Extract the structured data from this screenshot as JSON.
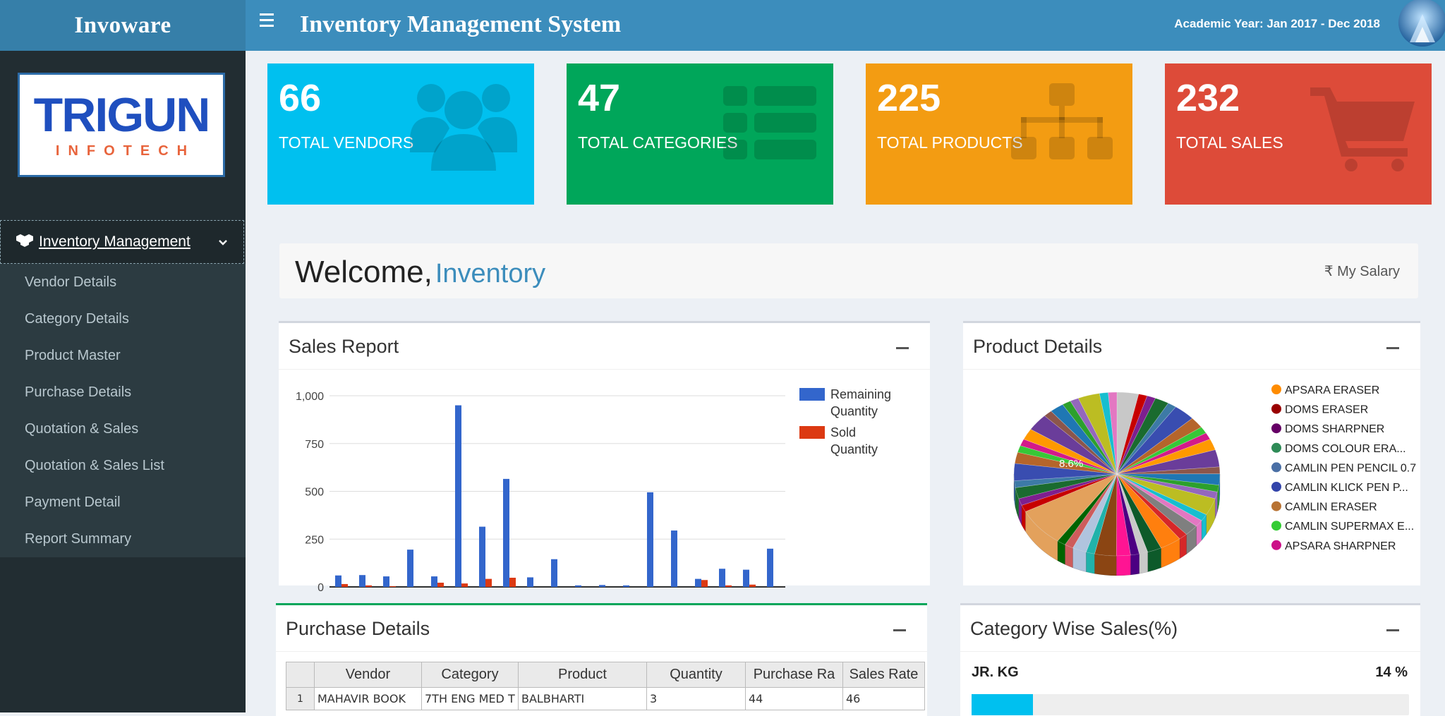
{
  "header": {
    "app_name": "Invoware",
    "system_title": "Inventory Management System",
    "academic_year": "Academic Year: Jan 2017 - Dec 2018"
  },
  "sidebar": {
    "brand_main": "TRIGUN",
    "brand_sub": "INFOTECH",
    "menu_head": "Inventory Management",
    "items": [
      {
        "label": "Vendor Details"
      },
      {
        "label": "Category Details"
      },
      {
        "label": "Product Master"
      },
      {
        "label": "Purchase Details"
      },
      {
        "label": "Quotation & Sales"
      },
      {
        "label": "Quotation & Sales List"
      },
      {
        "label": "Payment Detail"
      },
      {
        "label": "Report Summary"
      }
    ]
  },
  "stats": [
    {
      "value": "66",
      "label": "TOTAL VENDORS",
      "color": "#00c0ef",
      "icon": "users-icon"
    },
    {
      "value": "47",
      "label": "TOTAL CATEGORIES",
      "color": "#00a65a",
      "icon": "list-icon"
    },
    {
      "value": "225",
      "label": "TOTAL PRODUCTS",
      "color": "#f39c12",
      "icon": "sitemap-icon"
    },
    {
      "value": "232",
      "label": "TOTAL SALES",
      "color": "#dd4b39",
      "icon": "cart-icon"
    }
  ],
  "welcome": {
    "greeting": "Welcome,",
    "name": "Inventory",
    "salary_link": "₹ My Salary"
  },
  "sales_report": {
    "title": "Sales Report",
    "chart_data": {
      "type": "bar",
      "ylim": [
        0,
        1000
      ],
      "y_ticks": [
        "0",
        "250",
        "500",
        "750",
        "1,000"
      ],
      "legend_position": "right",
      "series": [
        {
          "name": "Remaining Quantity",
          "color": "#3366cc",
          "values": [
            60,
            62,
            55,
            195,
            55,
            950,
            315,
            565,
            50,
            145,
            8,
            10,
            8,
            495,
            295,
            42,
            95,
            90,
            200
          ]
        },
        {
          "name": "Sold Quantity",
          "color": "#dc3912",
          "values": [
            15,
            8,
            3,
            0,
            22,
            18,
            42,
            48,
            0,
            0,
            0,
            0,
            0,
            0,
            0,
            36,
            8,
            12,
            0
          ]
        }
      ]
    }
  },
  "product_details": {
    "title": "Product Details",
    "visible_slice_label": "8.6%",
    "legend": [
      {
        "label": "APSARA ERASER",
        "color": "#ff8c00"
      },
      {
        "label": "DOMS ERASER",
        "color": "#990000"
      },
      {
        "label": "DOMS SHARPNER",
        "color": "#660066"
      },
      {
        "label": "DOMS COLOUR ERA...",
        "color": "#2e8b57"
      },
      {
        "label": "CAMLIN PEN PENCIL 0.7",
        "color": "#4a6fa5"
      },
      {
        "label": "CAMLIN KLICK PEN P...",
        "color": "#3344aa"
      },
      {
        "label": "CAMLIN ERASER",
        "color": "#b87333"
      },
      {
        "label": "CAMLIN SUPERMAX E...",
        "color": "#33cc33"
      },
      {
        "label": "APSARA SHARPNER",
        "color": "#cc1188"
      }
    ]
  },
  "purchase_details": {
    "title": "Purchase Details",
    "columns": [
      "",
      "Vendor",
      "Category",
      "Product",
      "Quantity",
      "Purchase Ra",
      "Sales Rate"
    ],
    "rows": [
      [
        "1",
        "MAHAVIR BOOK",
        "7TH ENG MED T",
        "BALBHARTI",
        "3",
        "44",
        "46"
      ]
    ]
  },
  "category_sales": {
    "title": "Category Wise Sales(%)",
    "label": "JR. KG",
    "percent_text": "14 %",
    "percent": 14
  }
}
